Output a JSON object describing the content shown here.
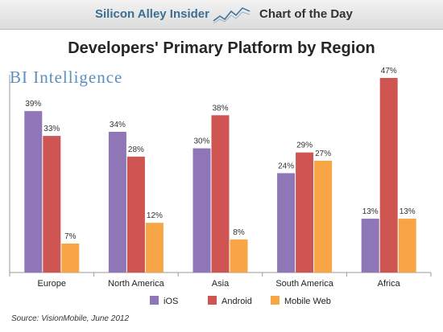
{
  "banner": {
    "left_text": "Silicon Alley Insider",
    "right_text": "Chart of the Day"
  },
  "brand": "BI Intelligence",
  "source": "Source: VisionMobile, June 2012",
  "chart_data": {
    "type": "bar",
    "title": "Developers' Primary Platform by Region",
    "categories": [
      "Europe",
      "North America",
      "Asia",
      "South America",
      "Africa"
    ],
    "series": [
      {
        "name": "iOS",
        "color": "#8f76b7",
        "values": [
          39,
          34,
          30,
          24,
          13
        ],
        "labels": [
          "39%",
          "34%",
          "30%",
          "24%",
          "13%"
        ]
      },
      {
        "name": "Android",
        "color": "#ce5551",
        "values": [
          33,
          28,
          38,
          29,
          47
        ],
        "labels": [
          "33%",
          "28%",
          "38%",
          "29%",
          "47%"
        ]
      },
      {
        "name": "Mobile Web",
        "color": "#f7a545",
        "values": [
          7,
          12,
          8,
          27,
          13
        ],
        "labels": [
          "7%",
          "12%",
          "8%",
          "27%",
          "13%"
        ]
      }
    ],
    "ylim": [
      0,
      47
    ],
    "grid": false,
    "legend_position": "bottom"
  }
}
